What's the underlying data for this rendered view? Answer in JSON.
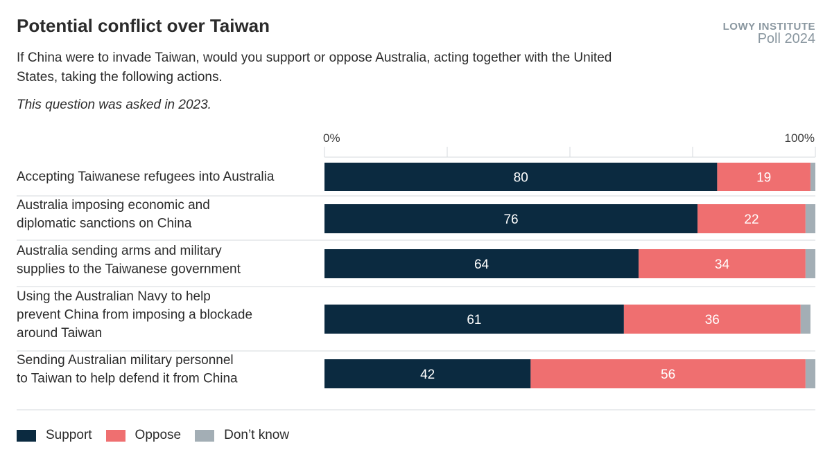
{
  "header": {
    "title": "Potential conflict over Taiwan",
    "subtitle": "If China were to invade Taiwan, would you support or oppose Australia, acting together with the United States, taking the following actions.",
    "note": "This question was asked in 2023.",
    "brand_line1": "LOWY INSTITUTE",
    "brand_line2": "Poll 2024"
  },
  "legend": {
    "items": [
      {
        "label": "Support",
        "color": "#0b2a40"
      },
      {
        "label": "Oppose",
        "color": "#ef6f70"
      },
      {
        "label": "Don’t know",
        "color": "#a3aeb5"
      }
    ]
  },
  "chart_data": {
    "type": "bar",
    "orientation": "horizontal",
    "stacked": true,
    "xlim": [
      0,
      100
    ],
    "x_tick_labels": [
      "0%",
      "100%"
    ],
    "grid": true,
    "legend_position": "bottom-left",
    "categories": [
      "Accepting Taiwanese refugees into Australia",
      "Australia imposing economic and diplomatic sanctions on China",
      "Australia sending arms and military supplies to the Taiwanese government",
      "Using the Australian Navy to help prevent China from imposing a blockade around Taiwan",
      "Sending Australian military personnel to Taiwan to help defend it from China"
    ],
    "series": [
      {
        "name": "Support",
        "color": "#0b2a40",
        "values": [
          80,
          76,
          64,
          61,
          42
        ]
      },
      {
        "name": "Oppose",
        "color": "#ef6f70",
        "values": [
          19,
          22,
          34,
          36,
          56
        ]
      },
      {
        "name": "Don’t know",
        "color": "#a3aeb5",
        "values": [
          1,
          2,
          2,
          2,
          2
        ]
      }
    ]
  }
}
